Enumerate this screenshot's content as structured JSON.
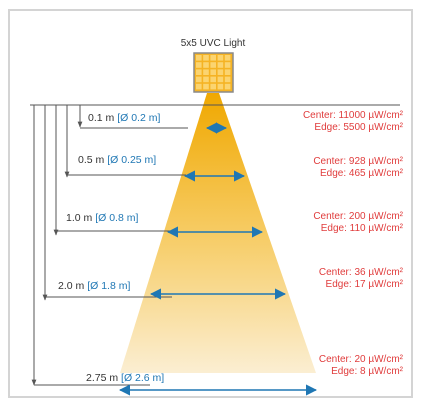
{
  "light": {
    "label": "5x5 UVC Light"
  },
  "colors": {
    "frame": "#d4d4d4",
    "beam_top": "#f0a800",
    "beam_bottom": "#fbeed2",
    "chip_fill": "#f5b324",
    "chip_border": "#8a8a8a",
    "led": "#fbd470",
    "lines": "#555555",
    "arrows": "#1f77b4",
    "diameter_text": "#1f77b4",
    "irradiance_text": "#e03c3c"
  },
  "levels": [
    {
      "distance": "0.1 m",
      "diameter": "[Ø 0.2 m]",
      "center": "Center: 11000 µW/cm²",
      "edge": "Edge: 5500 µW/cm²"
    },
    {
      "distance": "0.5 m",
      "diameter": "[Ø 0.25 m]",
      "center": "Center: 928 µW/cm²",
      "edge": "Edge: 465 µW/cm²"
    },
    {
      "distance": "1.0 m",
      "diameter": "[Ø 0.8 m]",
      "center": "Center: 200 µW/cm²",
      "edge": "Edge: 110 µW/cm²"
    },
    {
      "distance": "2.0 m",
      "diameter": "[Ø 1.8 m]",
      "center": "Center: 36 µW/cm²",
      "edge": "Edge: 17 µW/cm²"
    },
    {
      "distance": "2.75 m",
      "diameter": "[Ø 2.6 m]",
      "center": "Center: 20 µW/cm²",
      "edge": "Edge: 8 µW/cm²"
    }
  ]
}
